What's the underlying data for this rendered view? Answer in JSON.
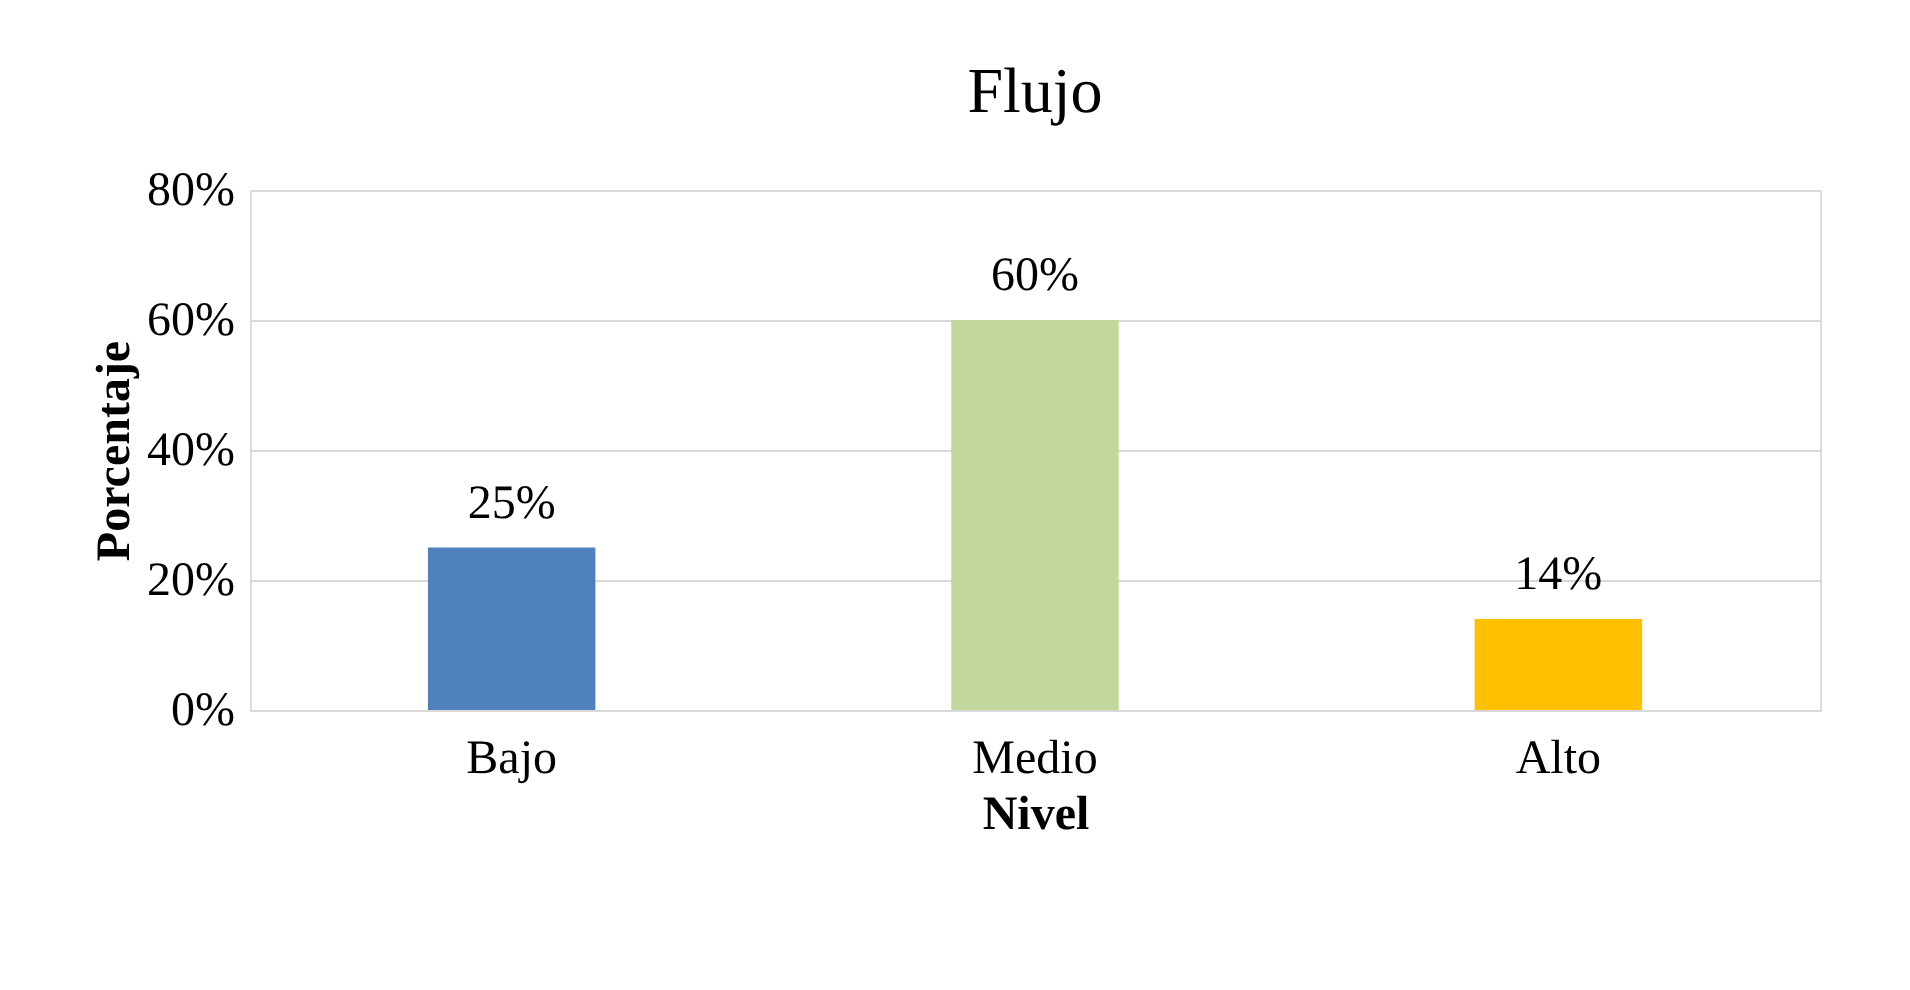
{
  "chart_data": {
    "type": "bar",
    "title": "Flujo",
    "xlabel": "Nivel",
    "ylabel": "Porcentaje",
    "categories": [
      "Bajo",
      "Medio",
      "Alto"
    ],
    "values": [
      25,
      60,
      14
    ],
    "colors": [
      "#4f81bd",
      "#c3d69b",
      "#ffc000"
    ],
    "value_labels": [
      "25%",
      "60%",
      "14%"
    ],
    "ylim": [
      0,
      80
    ],
    "yticks": [
      {
        "value": 0,
        "label": "0%"
      },
      {
        "value": 20,
        "label": "20%"
      },
      {
        "value": 40,
        "label": "40%"
      },
      {
        "value": 60,
        "label": "60%"
      },
      {
        "value": 80,
        "label": "80%"
      }
    ],
    "grid": "y"
  }
}
